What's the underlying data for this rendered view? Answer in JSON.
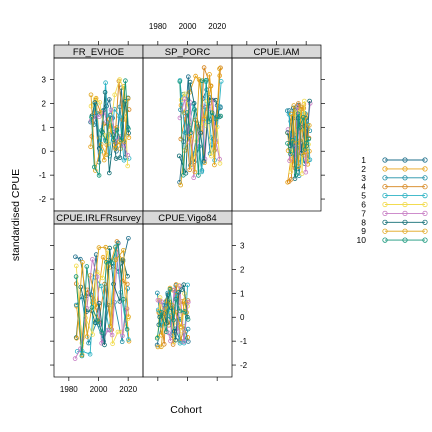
{
  "chart_data": {
    "type": "line",
    "xlabel": "Cohort",
    "ylabel": "standardised CPUE",
    "xlim": [
      1970,
      2030
    ],
    "ylim": [
      -2.5,
      3.9
    ],
    "x_ticks": [
      1980,
      2000,
      2020
    ],
    "y_ticks": [
      -2,
      -1,
      0,
      1,
      2,
      3
    ],
    "y_tick_labels": [
      "-2",
      "-1",
      "0",
      "1",
      "2",
      "3"
    ],
    "panels": [
      {
        "name": "FR_EVHOE",
        "x_range": [
          1995,
          2020
        ],
        "y_range": [
          -1.6,
          3.0
        ]
      },
      {
        "name": "SP_PORC",
        "x_range": [
          1995,
          2022
        ],
        "y_range": [
          -1.9,
          3.5
        ]
      },
      {
        "name": "CPUE.IAM",
        "x_range": [
          2008,
          2022
        ],
        "y_range": [
          -1.6,
          2.1
        ]
      },
      {
        "name": "CPUE.IRLFRsurvey",
        "x_range": [
          1985,
          2020
        ],
        "y_range": [
          -2.2,
          3.3
        ]
      },
      {
        "name": "CPUE.Vigo84",
        "x_range": [
          1980,
          2000
        ],
        "y_range": [
          -1.7,
          1.4
        ]
      }
    ],
    "series": [
      {
        "name": "1",
        "color": "#1f6f8b"
      },
      {
        "name": "2",
        "color": "#e8a317"
      },
      {
        "name": "3",
        "color": "#1f8fa6"
      },
      {
        "name": "4",
        "color": "#d6841a"
      },
      {
        "name": "5",
        "color": "#2bb3c4"
      },
      {
        "name": "6",
        "color": "#f2dc50"
      },
      {
        "name": "7",
        "color": "#c77dc4"
      },
      {
        "name": "8",
        "color": "#0f6b72"
      },
      {
        "name": "9",
        "color": "#e0a419"
      },
      {
        "name": "10",
        "color": "#14967a"
      }
    ]
  }
}
